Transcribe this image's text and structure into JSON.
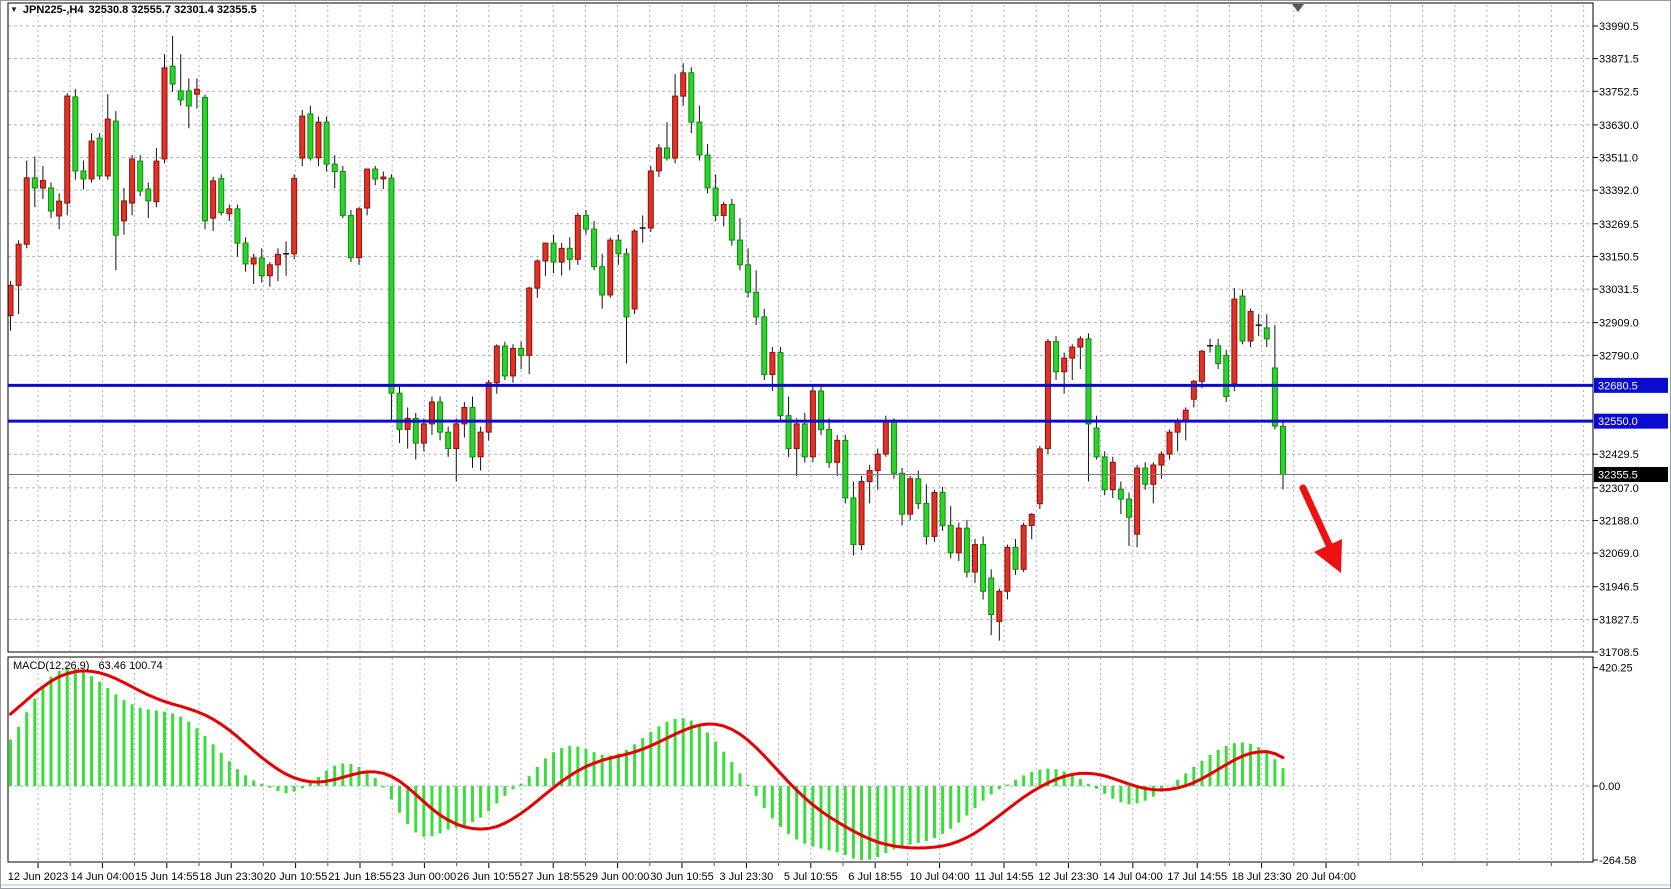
{
  "header": {
    "symbol_period": "JPN225-,H4",
    "ohlc_text": "32530.8 32555.7 32301.4 32355.5"
  },
  "macd_panel": {
    "label": "MACD(12,26,9)",
    "values": "63.46 100.74"
  },
  "levels": {
    "resistance_label": "32680.5",
    "support_label": "32550.0",
    "current_label": "32355.5"
  },
  "colors": {
    "bull": "#e03226",
    "bull_stroke": "#8f100c",
    "bear": "#2fd12f",
    "bear_stroke": "#0a8f0a",
    "wick": "#111111",
    "grid": "#a9b1c4",
    "level_blue": "#0b0bcf",
    "current_gray": "#7a7a7a",
    "hist_green": "#3ade3a",
    "signal_red": "#e60000",
    "arrow_red": "#ee1111",
    "frame": "#000000"
  },
  "chart_data": {
    "type": "candlestick",
    "symbol": "JPN225-",
    "timeframe": "H4",
    "title": "JPN225-,H4 32530.8 32555.7 32301.4 32355.5",
    "current": {
      "open": 32530.8,
      "high": 32555.7,
      "low": 32301.4,
      "close": 32355.5
    },
    "ylim": [
      31708.5,
      33990.5
    ],
    "grid": "dotted",
    "price_axis_ticks": [
      33990.5,
      33871.5,
      33752.5,
      33630.0,
      33511.0,
      33392.0,
      33269.5,
      33150.5,
      33031.5,
      32909.0,
      32790.0,
      32429.5,
      32307.0,
      32188.0,
      32069.0,
      31946.5,
      31827.5,
      31708.5
    ],
    "time_axis_ticks": [
      "12 Jun 2023",
      "14 Jun 04:00",
      "15 Jun 14:55",
      "18 Jun 23:30",
      "20 Jun 10:55",
      "21 Jun 18:55",
      "23 Jun 00:00",
      "26 Jun 10:55",
      "27 Jun 18:55",
      "29 Jun 00:00",
      "30 Jun 10:55",
      "3 Jul 23:30",
      "5 Jul 10:55",
      "6 Jul 18:55",
      "10 Jul 04:00",
      "11 Jul 14:55",
      "12 Jul 23:30",
      "14 Jul 04:00",
      "17 Jul 14:55",
      "18 Jul 23:30",
      "20 Jul 04:00"
    ],
    "levels": {
      "resistance": 32680.5,
      "support": 32550.0,
      "last": 32355.5
    },
    "bars": [
      [
        32935,
        33060,
        32880,
        33045
      ],
      [
        33045,
        33210,
        32940,
        33195
      ],
      [
        33195,
        33500,
        33180,
        33437
      ],
      [
        33437,
        33515,
        33330,
        33400
      ],
      [
        33400,
        33480,
        33360,
        33427
      ],
      [
        33400,
        33420,
        33290,
        33316
      ],
      [
        33298,
        33380,
        33250,
        33352
      ],
      [
        33345,
        33745,
        33300,
        33735
      ],
      [
        33732,
        33760,
        33430,
        33462
      ],
      [
        33462,
        33500,
        33395,
        33433
      ],
      [
        33433,
        33600,
        33420,
        33571
      ],
      [
        33582,
        33600,
        33430,
        33444
      ],
      [
        33444,
        33742,
        33430,
        33651
      ],
      [
        33644,
        33680,
        33100,
        33228
      ],
      [
        33280,
        33400,
        33230,
        33353
      ],
      [
        33345,
        33520,
        33300,
        33506
      ],
      [
        33498,
        33520,
        33370,
        33389
      ],
      [
        33396,
        33420,
        33290,
        33353
      ],
      [
        33350,
        33546,
        33330,
        33498
      ],
      [
        33506,
        33888,
        33490,
        33838
      ],
      [
        33844,
        33954,
        33750,
        33779
      ],
      [
        33754,
        33888,
        33700,
        33721
      ],
      [
        33754,
        33800,
        33618,
        33699
      ],
      [
        33742,
        33800,
        33690,
        33760
      ],
      [
        33730,
        33740,
        33250,
        33280
      ],
      [
        33290,
        33440,
        33243,
        33426
      ],
      [
        33434,
        33450,
        33300,
        33310
      ],
      [
        33306,
        33340,
        33280,
        33324
      ],
      [
        33324,
        33340,
        33150,
        33199
      ],
      [
        33199,
        33220,
        33095,
        33123
      ],
      [
        33123,
        33160,
        33050,
        33145
      ],
      [
        33145,
        33180,
        33055,
        33080
      ],
      [
        33080,
        33130,
        33040,
        33120
      ],
      [
        33120,
        33180,
        33060,
        33158
      ],
      [
        33158,
        33205,
        33080,
        33160
      ],
      [
        33160,
        33450,
        33140,
        33435
      ],
      [
        33509,
        33685,
        33480,
        33662
      ],
      [
        33670,
        33700,
        33500,
        33509
      ],
      [
        33510,
        33660,
        33480,
        33640
      ],
      [
        33640,
        33660,
        33460,
        33487
      ],
      [
        33487,
        33520,
        33400,
        33460
      ],
      [
        33460,
        33480,
        33290,
        33300
      ],
      [
        33300,
        33320,
        33130,
        33146
      ],
      [
        33146,
        33330,
        33120,
        33324
      ],
      [
        33327,
        33470,
        33300,
        33469
      ],
      [
        33469,
        33480,
        33410,
        33433
      ],
      [
        33433,
        33460,
        33396,
        33440
      ],
      [
        33436,
        33450,
        32550,
        32652
      ],
      [
        32652,
        32680,
        32470,
        32520
      ],
      [
        32520,
        32600,
        32450,
        32560
      ],
      [
        32560,
        32580,
        32410,
        32470
      ],
      [
        32470,
        32560,
        32440,
        32540
      ],
      [
        32540,
        32640,
        32500,
        32620
      ],
      [
        32620,
        32640,
        32480,
        32510
      ],
      [
        32510,
        32530,
        32420,
        32450
      ],
      [
        32450,
        32560,
        32330,
        32540
      ],
      [
        32540,
        32620,
        32490,
        32600
      ],
      [
        32600,
        32640,
        32380,
        32420
      ],
      [
        32420,
        32530,
        32370,
        32510
      ],
      [
        32510,
        32700,
        32480,
        32690
      ],
      [
        32690,
        32830,
        32650,
        32824
      ],
      [
        32824,
        32840,
        32700,
        32715
      ],
      [
        32715,
        32830,
        32690,
        32815
      ],
      [
        32815,
        32840,
        32740,
        32790
      ],
      [
        32790,
        33040,
        32722,
        33035
      ],
      [
        33035,
        33140,
        33000,
        33134
      ],
      [
        33134,
        33200,
        33080,
        33199
      ],
      [
        33199,
        33230,
        33090,
        33130
      ],
      [
        33130,
        33200,
        33080,
        33180
      ],
      [
        33180,
        33220,
        33100,
        33140
      ],
      [
        33140,
        33310,
        33120,
        33300
      ],
      [
        33300,
        33320,
        33230,
        33250
      ],
      [
        33250,
        33280,
        33100,
        33113
      ],
      [
        33113,
        33160,
        32960,
        33010
      ],
      [
        33010,
        33220,
        33000,
        33210
      ],
      [
        33210,
        33230,
        33120,
        33160
      ],
      [
        33160,
        33180,
        32760,
        32930
      ],
      [
        32959,
        33250,
        32940,
        33243
      ],
      [
        33250,
        33300,
        33200,
        33254
      ],
      [
        33254,
        33480,
        33240,
        33462
      ],
      [
        33462,
        33560,
        33440,
        33546
      ],
      [
        33546,
        33640,
        33500,
        33509
      ],
      [
        33509,
        33815,
        33490,
        33735
      ],
      [
        33735,
        33855,
        33700,
        33820
      ],
      [
        33820,
        33840,
        33600,
        33640
      ],
      [
        33640,
        33700,
        33500,
        33520
      ],
      [
        33520,
        33560,
        33380,
        33400
      ],
      [
        33400,
        33450,
        33280,
        33300
      ],
      [
        33300,
        33350,
        33260,
        33340
      ],
      [
        33340,
        33360,
        33190,
        33210
      ],
      [
        33210,
        33290,
        33100,
        33120
      ],
      [
        33120,
        33180,
        33000,
        33020
      ],
      [
        33020,
        33100,
        32900,
        32930
      ],
      [
        32930,
        32960,
        32700,
        32720
      ],
      [
        32720,
        32820,
        32660,
        32800
      ],
      [
        32800,
        32820,
        32550,
        32570
      ],
      [
        32570,
        32640,
        32420,
        32450
      ],
      [
        32450,
        32560,
        32350,
        32540
      ],
      [
        32540,
        32580,
        32400,
        32420
      ],
      [
        32420,
        32680,
        32400,
        32660
      ],
      [
        32660,
        32680,
        32500,
        32520
      ],
      [
        32520,
        32560,
        32380,
        32400
      ],
      [
        32400,
        32500,
        32350,
        32480
      ],
      [
        32480,
        32500,
        32250,
        32270
      ],
      [
        32270,
        32330,
        32060,
        32100
      ],
      [
        32100,
        32350,
        32080,
        32330
      ],
      [
        32330,
        32390,
        32250,
        32370
      ],
      [
        32370,
        32450,
        32300,
        32430
      ],
      [
        32430,
        32570,
        32420,
        32550
      ],
      [
        32550,
        32560,
        32340,
        32360
      ],
      [
        32360,
        32380,
        32170,
        32211
      ],
      [
        32211,
        32350,
        32190,
        32340
      ],
      [
        32340,
        32370,
        32230,
        32250
      ],
      [
        32250,
        32320,
        32100,
        32130
      ],
      [
        32130,
        32300,
        32110,
        32290
      ],
      [
        32290,
        32310,
        32150,
        32170
      ],
      [
        32170,
        32240,
        32050,
        32070
      ],
      [
        32070,
        32180,
        32040,
        32160
      ],
      [
        32160,
        32190,
        31980,
        32000
      ],
      [
        32000,
        32120,
        31960,
        32100
      ],
      [
        32100,
        32130,
        31900,
        31930
      ],
      [
        31978,
        32010,
        31770,
        31845
      ],
      [
        31820,
        31940,
        31750,
        31930
      ],
      [
        31930,
        32100,
        31900,
        32090
      ],
      [
        32090,
        32120,
        31990,
        32010
      ],
      [
        32010,
        32180,
        32000,
        32170
      ],
      [
        32170,
        32215,
        32120,
        32210
      ],
      [
        32249,
        32460,
        32230,
        32449
      ],
      [
        32450,
        32850,
        32430,
        32840
      ],
      [
        32840,
        32860,
        32700,
        32730
      ],
      [
        32730,
        32800,
        32650,
        32780
      ],
      [
        32780,
        32830,
        32700,
        32820
      ],
      [
        32820,
        32860,
        32740,
        32850
      ],
      [
        32850,
        32870,
        32330,
        32540
      ],
      [
        32525,
        32570,
        32410,
        32420
      ],
      [
        32420,
        32440,
        32280,
        32300
      ],
      [
        32300,
        32420,
        32270,
        32400
      ],
      [
        32302,
        32330,
        32211,
        32266
      ],
      [
        32266,
        32290,
        32095,
        32200
      ],
      [
        32138,
        32390,
        32090,
        32379
      ],
      [
        32379,
        32400,
        32300,
        32320
      ],
      [
        32320,
        32400,
        32250,
        32390
      ],
      [
        32390,
        32440,
        32340,
        32430
      ],
      [
        32430,
        32520,
        32410,
        32510
      ],
      [
        32510,
        32560,
        32440,
        32550
      ],
      [
        32550,
        32600,
        32480,
        32590
      ],
      [
        32630,
        32700,
        32600,
        32695
      ],
      [
        32695,
        32810,
        32670,
        32805
      ],
      [
        32825,
        32850,
        32800,
        32825
      ],
      [
        32825,
        32850,
        32740,
        32760
      ],
      [
        32790,
        32810,
        32620,
        32640
      ],
      [
        32688,
        33035,
        32660,
        32995
      ],
      [
        33006,
        33030,
        32830,
        32842
      ],
      [
        32842,
        32960,
        32820,
        32950
      ],
      [
        32900,
        32940,
        32860,
        32900
      ],
      [
        32890,
        32940,
        32820,
        32850
      ],
      [
        32744,
        32900,
        32520,
        32532
      ],
      [
        32530.8,
        32555.7,
        32301.4,
        32355.5
      ]
    ],
    "indicator": {
      "name": "MACD",
      "params": "12,26,9",
      "macd_value": 63.46,
      "signal_value": 100.74,
      "axis_ticks": [
        420.25,
        0.0,
        -264.58
      ],
      "ylim": [
        -264.58,
        420.25
      ],
      "histogram": [
        165,
        210,
        262,
        310,
        352,
        388,
        408,
        420,
        416,
        405,
        390,
        370,
        348,
        325,
        305,
        290,
        278,
        272,
        268,
        264,
        258,
        246,
        228,
        205,
        178,
        148,
        118,
        88,
        60,
        38,
        20,
        8,
        -6,
        -18,
        -26,
        -20,
        -8,
        10,
        32,
        55,
        72,
        80,
        78,
        68,
        50,
        28,
        -5,
        -48,
        -95,
        -135,
        -165,
        -180,
        -178,
        -168,
        -155,
        -148,
        -140,
        -128,
        -112,
        -90,
        -62,
        -35,
        -12,
        8,
        35,
        68,
        98,
        120,
        135,
        142,
        140,
        132,
        120,
        110,
        108,
        115,
        128,
        148,
        170,
        192,
        212,
        228,
        238,
        240,
        232,
        215,
        190,
        158,
        122,
        85,
        45,
        5,
        -35,
        -78,
        -115,
        -145,
        -170,
        -190,
        -205,
        -215,
        -222,
        -228,
        -235,
        -245,
        -258,
        -264,
        -262,
        -252,
        -238,
        -225,
        -215,
        -208,
        -202,
        -195,
        -185,
        -170,
        -152,
        -130,
        -105,
        -78,
        -52,
        -30,
        -12,
        5,
        22,
        38,
        50,
        58,
        62,
        60,
        52,
        40,
        25,
        8,
        -10,
        -28,
        -45,
        -58,
        -65,
        -62,
        -52,
        -38,
        -20,
        0,
        22,
        45,
        68,
        90,
        110,
        128,
        142,
        152,
        155,
        150,
        138,
        120,
        95,
        63.46
      ],
      "signal": [
        255,
        280,
        305,
        330,
        352,
        372,
        388,
        399,
        406,
        409,
        407,
        402,
        393,
        381,
        367,
        352,
        337,
        323,
        311,
        300,
        291,
        283,
        274,
        264,
        252,
        237,
        219,
        198,
        175,
        150,
        125,
        101,
        79,
        59,
        42,
        29,
        20,
        15,
        14,
        17,
        23,
        31,
        39,
        46,
        50,
        50,
        45,
        34,
        17,
        -5,
        -30,
        -56,
        -81,
        -103,
        -121,
        -135,
        -145,
        -151,
        -153,
        -151,
        -144,
        -132,
        -116,
        -97,
        -76,
        -53,
        -29,
        -6,
        16,
        36,
        54,
        69,
        81,
        91,
        99,
        106,
        113,
        121,
        131,
        143,
        156,
        170,
        184,
        197,
        208,
        216,
        220,
        219,
        213,
        201,
        184,
        162,
        136,
        107,
        76,
        45,
        14,
        -15,
        -42,
        -67,
        -89,
        -109,
        -127,
        -144,
        -160,
        -175,
        -188,
        -199,
        -207,
        -213,
        -217,
        -219,
        -220,
        -219,
        -217,
        -213,
        -206,
        -196,
        -183,
        -167,
        -148,
        -127,
        -105,
        -83,
        -61,
        -40,
        -21,
        -4,
        11,
        24,
        34,
        41,
        45,
        45,
        42,
        36,
        27,
        17,
        7,
        -2,
        -9,
        -13,
        -14,
        -12,
        -7,
        1,
        12,
        26,
        42,
        59,
        76,
        92,
        106,
        116,
        121,
        122,
        115,
        100.74
      ]
    },
    "annotations": [
      {
        "type": "hline",
        "price": 32680.5,
        "color": "#0b0bcf"
      },
      {
        "type": "hline",
        "price": 32550.0,
        "color": "#0b0bcf"
      },
      {
        "type": "arrow",
        "direction": "down-right",
        "color": "#ee1111"
      }
    ]
  }
}
